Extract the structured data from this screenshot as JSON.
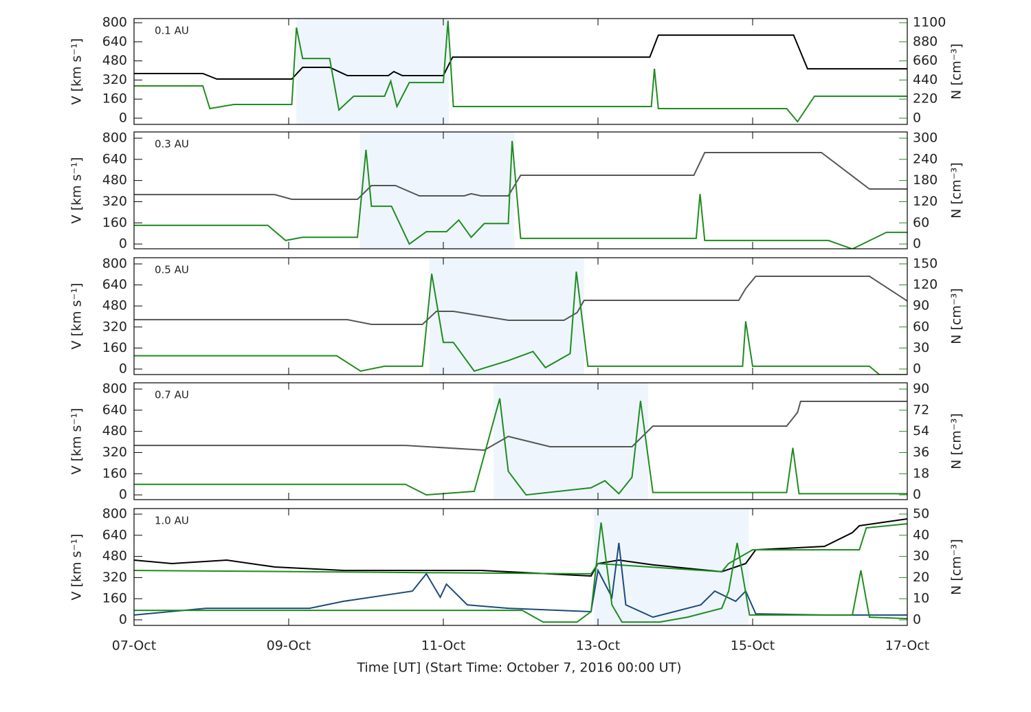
{
  "chart_data": [
    {
      "type": "line",
      "annotation": "0.1 AU",
      "ylabel": "V [km s⁻¹]",
      "y2label": "N [cm⁻³]",
      "xlim": [
        0,
        10
      ],
      "ylim": [
        -52,
        835
      ],
      "yticks": [
        0,
        160,
        320,
        480,
        640,
        800
      ],
      "y2lim": [
        -71.5,
        1148
      ],
      "y2ticks": [
        0,
        220,
        440,
        660,
        880,
        1100
      ],
      "shade": [
        2.1,
        4.07
      ],
      "series": [
        {
          "color": "#000000",
          "x": [
            0,
            0.89,
            1.07,
            2.04,
            2.18,
            2.53,
            2.76,
            3.29,
            3.36,
            3.47,
            4.0,
            4.12,
            6.67,
            6.78,
            8.53,
            8.71,
            10
          ],
          "values": [
            374,
            374,
            328,
            328,
            426,
            426,
            357,
            357,
            391,
            357,
            357,
            512,
            512,
            696,
            696,
            414,
            414
          ]
        },
        {
          "color": "#1e8c1e",
          "axis": "y2",
          "x": [
            0,
            0.89,
            0.98,
            1.29,
            2.04,
            2.1,
            2.18,
            2.53,
            2.65,
            2.84,
            3.24,
            3.32,
            3.4,
            3.56,
            4.0,
            4.06,
            4.13,
            6.69,
            6.73,
            6.78,
            8.44,
            8.58,
            8.8,
            10
          ],
          "values": [
            372,
            372,
            111,
            158,
            158,
            1044,
            688,
            688,
            95,
            253,
            253,
            427,
            134,
            411,
            411,
            1123,
            134,
            134,
            570,
            111,
            111,
            -40,
            253,
            253
          ]
        }
      ]
    },
    {
      "type": "line",
      "annotation": "0.3 AU",
      "ylabel": "V [km s⁻¹]",
      "y2label": "N [cm⁻³]",
      "xlim": [
        0,
        10
      ],
      "ylim": [
        -36,
        847
      ],
      "yticks": [
        0,
        160,
        320,
        480,
        640,
        800
      ],
      "y2lim": [
        -13.5,
        317.6
      ],
      "y2ticks": [
        0,
        60,
        120,
        180,
        240,
        300
      ],
      "shade": [
        2.92,
        4.92
      ],
      "series": [
        {
          "color": "#555555",
          "x": [
            0,
            1.82,
            2.04,
            2.89,
            3.07,
            3.38,
            3.69,
            4.27,
            4.36,
            4.49,
            4.84,
            5.0,
            7.24,
            7.38,
            8.89,
            9.51,
            10
          ],
          "values": [
            374,
            374,
            338,
            338,
            442,
            442,
            364,
            364,
            380,
            364,
            364,
            520,
            520,
            691,
            691,
            416,
            416
          ]
        },
        {
          "color": "#1e8c1e",
          "axis": "y2",
          "x": [
            0,
            1.73,
            1.96,
            2.18,
            2.89,
            3.0,
            3.07,
            3.33,
            3.56,
            3.78,
            4.04,
            4.2,
            4.36,
            4.53,
            4.84,
            4.89,
            5.0,
            7.27,
            7.32,
            7.38,
            8.98,
            9.29,
            9.73,
            10
          ],
          "values": [
            53,
            53,
            10,
            19,
            19,
            267,
            107,
            107,
            0,
            35,
            35,
            68,
            19,
            58,
            58,
            292,
            16,
            16,
            142,
            10,
            10,
            -14,
            33,
            33
          ]
        }
      ]
    },
    {
      "type": "line",
      "annotation": "0.5 AU",
      "ylabel": "V [km s⁻¹]",
      "y2label": "N [cm⁻³]",
      "xlim": [
        0,
        10
      ],
      "ylim": [
        -42,
        847
      ],
      "yticks": [
        0,
        160,
        320,
        480,
        640,
        800
      ],
      "y2lim": [
        -7.9,
        158.8
      ],
      "y2ticks": [
        0,
        30,
        60,
        90,
        120,
        150
      ],
      "shade": [
        3.82,
        5.82
      ],
      "series": [
        {
          "color": "#555555",
          "x": [
            0,
            2.76,
            3.07,
            3.73,
            3.91,
            4.13,
            4.84,
            5.56,
            5.73,
            5.82,
            7.82,
            7.91,
            8.04,
            9.51,
            10
          ],
          "values": [
            376,
            376,
            340,
            340,
            439,
            439,
            371,
            371,
            429,
            523,
            523,
            612,
            706,
            706,
            518
          ]
        },
        {
          "color": "#1e8c1e",
          "axis": "y2",
          "x": [
            0,
            2.62,
            2.93,
            3.24,
            3.73,
            3.85,
            4.0,
            4.13,
            4.4,
            4.84,
            5.16,
            5.32,
            5.64,
            5.72,
            5.87,
            7.87,
            7.91,
            8.0,
            9.51,
            9.64,
            10
          ],
          "values": [
            19,
            19,
            -3,
            4,
            4,
            136,
            38,
            38,
            -3,
            12,
            25,
            2,
            22,
            139,
            4,
            4,
            68,
            4,
            4,
            -8,
            -8
          ]
        }
      ]
    },
    {
      "type": "line",
      "annotation": "0.7 AU",
      "ylabel": "V [km s⁻¹]",
      "y2label": "N [cm⁻³]",
      "xlim": [
        0,
        10
      ],
      "ylim": [
        -36,
        847
      ],
      "yticks": [
        0,
        160,
        320,
        480,
        640,
        800
      ],
      "y2lim": [
        -4.05,
        95.3
      ],
      "y2ticks": [
        0,
        18,
        36,
        54,
        72,
        90
      ],
      "shade": [
        4.65,
        6.65
      ],
      "series": [
        {
          "color": "#555555",
          "x": [
            0,
            3.51,
            4.53,
            4.84,
            5.38,
            6.44,
            6.71,
            8.44,
            8.58,
            8.62,
            10
          ],
          "values": [
            374,
            374,
            338,
            442,
            364,
            364,
            520,
            520,
            623,
            707,
            707
          ]
        },
        {
          "color": "#1e8c1e",
          "axis": "y2",
          "x": [
            0,
            3.51,
            3.78,
            4.4,
            4.73,
            4.84,
            5.07,
            5.91,
            6.09,
            6.27,
            6.44,
            6.55,
            6.71,
            8.44,
            8.52,
            8.6,
            10
          ],
          "values": [
            9,
            9,
            0,
            3,
            82,
            20,
            0,
            6,
            12,
            1,
            15,
            80,
            2,
            2,
            40,
            1,
            1
          ]
        }
      ]
    },
    {
      "type": "line",
      "annotation": "1.0 AU",
      "ylabel": "V [km s⁻¹]",
      "y2label": "N [cm⁻³]",
      "xlabel": "Time [UT] (Start Time: October 7, 2016 00:00 UT)",
      "xlim": [
        0,
        10
      ],
      "xticks": [
        {
          "value": 0,
          "label": "07-Oct"
        },
        {
          "value": 2,
          "label": "09-Oct"
        },
        {
          "value": 4,
          "label": "11-Oct"
        },
        {
          "value": 6,
          "label": "13-Oct"
        },
        {
          "value": 8,
          "label": "15-Oct"
        },
        {
          "value": 10,
          "label": "17-Oct"
        }
      ],
      "ylim": [
        -42,
        842
      ],
      "yticks": [
        0,
        160,
        320,
        480,
        640,
        800
      ],
      "y2lim": [
        -2.6,
        52.6
      ],
      "y2ticks": [
        0,
        10,
        20,
        30,
        40,
        50
      ],
      "shade": [
        5.95,
        7.95
      ],
      "series": [
        {
          "color": "#000000",
          "x": [
            0,
            0.49,
            1.2,
            1.82,
            2.71,
            4.49,
            5.91,
            6.0,
            6.27,
            6.71,
            7.6,
            7.91,
            8.04,
            8.93,
            9.29,
            9.38,
            10
          ],
          "values": [
            452,
            426,
            452,
            400,
            374,
            374,
            332,
            426,
            452,
            416,
            364,
            426,
            530,
            556,
            660,
            712,
            764
          ]
        },
        {
          "color": "#1e8c1e",
          "x": [
            0,
            5.91,
            6.0,
            7.6,
            7.69,
            8.0,
            9.38,
            9.47,
            10
          ],
          "values": [
            374,
            348,
            426,
            364,
            426,
            530,
            530,
            696,
            727
          ]
        },
        {
          "color": "#1a4a7a",
          "axis": "y2",
          "x": [
            0,
            0.93,
            2.27,
            2.71,
            3.6,
            3.78,
            3.96,
            4.04,
            4.31,
            4.84,
            5.91,
            6.0,
            6.18,
            6.27,
            6.36,
            6.71,
            7.33,
            7.51,
            7.78,
            7.91,
            8.04,
            8.93,
            10
          ],
          "values": [
            2.3,
            5.5,
            5.5,
            8.8,
            13.6,
            21.8,
            10.7,
            16.9,
            7.1,
            5.5,
            3.9,
            23.4,
            10.7,
            36.4,
            7.1,
            1.3,
            7.1,
            13.6,
            8.8,
            13.6,
            2.9,
            2.3,
            2.3
          ]
        },
        {
          "color": "#1e8c1e",
          "axis": "y2",
          "x": [
            0,
            5.02,
            5.29,
            5.73,
            5.91,
            6.04,
            6.18,
            6.31,
            6.8,
            7.16,
            7.6,
            7.69,
            7.8,
            7.96,
            9.29,
            9.4,
            9.51,
            10
          ],
          "values": [
            4.5,
            4.5,
            -1,
            -1,
            3.9,
            46,
            7.1,
            -1,
            -1,
            1.3,
            5.5,
            13.6,
            36.4,
            2.3,
            2.3,
            23.4,
            1.3,
            0.6
          ]
        }
      ]
    }
  ]
}
